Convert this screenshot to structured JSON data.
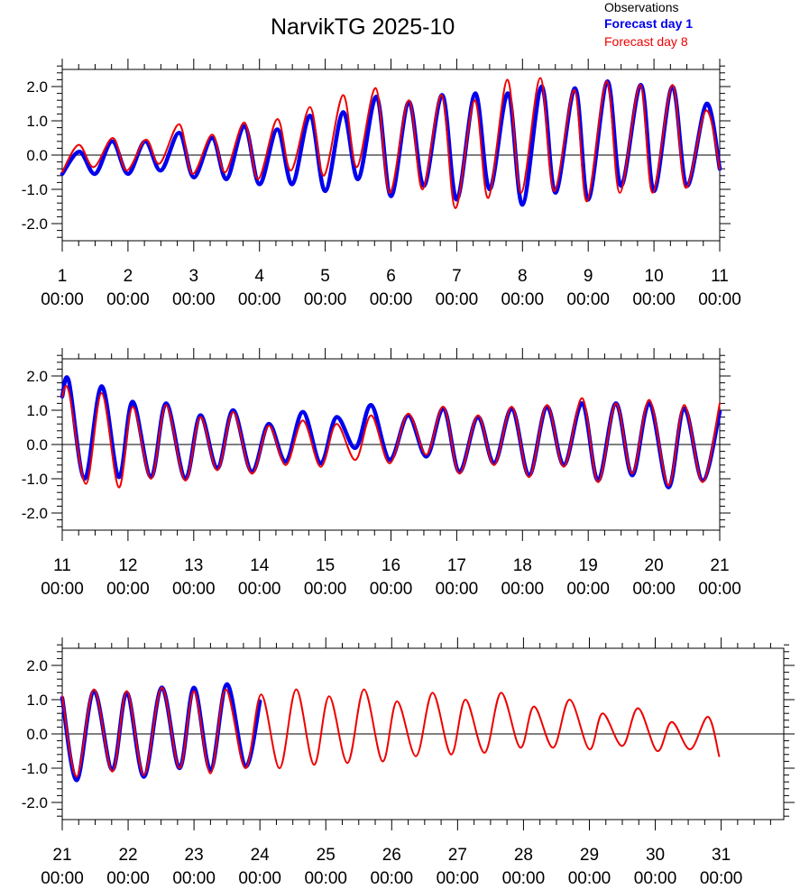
{
  "title": "NarvikTG 2025-10",
  "legend": {
    "observations": "Observations",
    "forecast_day1": "Forecast day 1",
    "forecast_day8": "Forecast day 8"
  },
  "colors": {
    "observations": "#000000",
    "forecast_day1": "#0000ee",
    "forecast_day8": "#ee0000"
  },
  "chart_data": [
    {
      "type": "line",
      "xlim": [
        1,
        11
      ],
      "ylim": [
        -2.5,
        2.5
      ],
      "yticks": [
        -2.0,
        -1.0,
        0.0,
        1.0,
        2.0
      ],
      "ytick_labels": [
        "-2.0",
        "-1.0",
        "0.0",
        "1.0",
        "2.0"
      ],
      "xticks": [
        1,
        2,
        3,
        4,
        5,
        6,
        7,
        8,
        9,
        10,
        11
      ],
      "xtick_labels": [
        [
          "1",
          "00:00"
        ],
        [
          "2",
          "00:00"
        ],
        [
          "3",
          "00:00"
        ],
        [
          "4",
          "00:00"
        ],
        [
          "5",
          "00:00"
        ],
        [
          "6",
          "00:00"
        ],
        [
          "7",
          "00:00"
        ],
        [
          "8",
          "00:00"
        ],
        [
          "9",
          "00:00"
        ],
        [
          "10",
          "00:00"
        ],
        [
          "11",
          "00:00"
        ]
      ],
      "zero_line": true,
      "series": [
        {
          "name": "Forecast day 1",
          "x": [
            1.0,
            1.26,
            1.5,
            1.76,
            2.0,
            2.26,
            2.5,
            2.78,
            3.0,
            3.28,
            3.5,
            3.77,
            4.0,
            4.27,
            4.5,
            4.77,
            5.0,
            5.27,
            5.5,
            5.78,
            6.0,
            6.27,
            6.5,
            6.78,
            7.0,
            7.28,
            7.5,
            7.78,
            8.0,
            8.29,
            8.5,
            8.8,
            9.0,
            9.29,
            9.5,
            9.8,
            10.0,
            10.28,
            10.5,
            10.8,
            11.0
          ],
          "values": [
            -0.55,
            0.1,
            -0.55,
            0.4,
            -0.55,
            0.4,
            -0.45,
            0.65,
            -0.65,
            0.5,
            -0.7,
            0.85,
            -0.85,
            0.75,
            -0.85,
            1.15,
            -1.05,
            1.25,
            -0.7,
            1.7,
            -1.2,
            1.55,
            -0.9,
            1.75,
            -1.3,
            1.8,
            -1.0,
            1.8,
            -1.45,
            2.0,
            -1.1,
            1.95,
            -1.3,
            2.15,
            -0.9,
            2.05,
            -1.05,
            2.0,
            -0.9,
            1.5,
            -0.4
          ]
        },
        {
          "name": "Forecast day 8",
          "x": [
            1.0,
            1.25,
            1.48,
            1.77,
            1.98,
            2.27,
            2.48,
            2.78,
            2.98,
            3.28,
            3.48,
            3.77,
            3.98,
            4.27,
            4.48,
            4.77,
            4.98,
            5.27,
            5.48,
            5.77,
            5.98,
            6.27,
            6.48,
            6.77,
            6.98,
            7.27,
            7.48,
            7.77,
            7.98,
            8.27,
            8.48,
            8.79,
            8.98,
            9.28,
            9.48,
            9.79,
            9.98,
            10.28,
            10.48,
            10.79,
            11.0
          ],
          "values": [
            -0.5,
            0.3,
            -0.35,
            0.5,
            -0.45,
            0.45,
            -0.25,
            0.9,
            -0.55,
            0.6,
            -0.5,
            0.95,
            -0.7,
            1.05,
            -0.45,
            1.4,
            -0.6,
            1.75,
            -0.35,
            1.95,
            -1.1,
            1.6,
            -1.0,
            1.75,
            -1.55,
            1.6,
            -1.25,
            2.2,
            -1.1,
            2.25,
            -1.05,
            1.9,
            -1.35,
            2.15,
            -1.1,
            2.05,
            -1.1,
            2.05,
            -0.95,
            1.3,
            -0.4
          ]
        }
      ]
    },
    {
      "type": "line",
      "xlim": [
        11,
        21
      ],
      "ylim": [
        -2.5,
        2.5
      ],
      "yticks": [
        -2.0,
        -1.0,
        0.0,
        1.0,
        2.0
      ],
      "ytick_labels": [
        "-2.0",
        "-1.0",
        "0.0",
        "1.0",
        "2.0"
      ],
      "xticks": [
        11,
        12,
        13,
        14,
        15,
        16,
        17,
        18,
        19,
        20,
        21
      ],
      "xtick_labels": [
        [
          "11",
          "00:00"
        ],
        [
          "12",
          "00:00"
        ],
        [
          "13",
          "00:00"
        ],
        [
          "14",
          "00:00"
        ],
        [
          "15",
          "00:00"
        ],
        [
          "16",
          "00:00"
        ],
        [
          "17",
          "00:00"
        ],
        [
          "18",
          "00:00"
        ],
        [
          "19",
          "00:00"
        ],
        [
          "20",
          "00:00"
        ],
        [
          "21",
          "00:00"
        ]
      ],
      "zero_line": true,
      "series": [
        {
          "name": "Forecast day 1",
          "x": [
            11.0,
            11.1,
            11.34,
            11.6,
            11.86,
            12.07,
            12.35,
            12.58,
            12.87,
            13.1,
            13.36,
            13.6,
            13.88,
            14.14,
            14.4,
            14.66,
            14.93,
            15.17,
            15.46,
            15.7,
            15.98,
            16.26,
            16.54,
            16.8,
            17.04,
            17.32,
            17.57,
            17.84,
            18.1,
            18.37,
            18.63,
            18.91,
            19.15,
            19.42,
            19.67,
            19.93,
            20.22,
            20.46,
            20.74,
            21.0
          ],
          "values": [
            1.4,
            1.85,
            -1.0,
            1.7,
            -0.95,
            1.25,
            -0.95,
            1.2,
            -1.0,
            0.85,
            -0.7,
            1.0,
            -0.8,
            0.6,
            -0.5,
            0.95,
            -0.55,
            0.8,
            -0.1,
            1.15,
            -0.45,
            0.85,
            -0.35,
            1.05,
            -0.8,
            0.8,
            -0.55,
            1.05,
            -0.9,
            1.1,
            -0.6,
            1.2,
            -1.05,
            1.2,
            -0.9,
            1.2,
            -1.25,
            1.05,
            -1.05,
            0.95
          ]
        },
        {
          "name": "Forecast day 8",
          "x": [
            11.0,
            11.1,
            11.36,
            11.6,
            11.86,
            12.07,
            12.35,
            12.58,
            12.87,
            13.1,
            13.36,
            13.6,
            13.88,
            14.14,
            14.4,
            14.66,
            14.93,
            15.17,
            15.46,
            15.7,
            15.98,
            16.26,
            16.54,
            16.8,
            17.04,
            17.32,
            17.57,
            17.84,
            18.1,
            18.37,
            18.63,
            18.91,
            19.15,
            19.42,
            19.67,
            19.93,
            20.22,
            20.46,
            20.74,
            21.0
          ],
          "values": [
            1.4,
            1.55,
            -1.15,
            1.5,
            -1.25,
            1.1,
            -1.0,
            1.15,
            -1.05,
            0.8,
            -0.75,
            0.95,
            -0.85,
            0.55,
            -0.6,
            0.7,
            -0.65,
            0.6,
            -0.45,
            0.85,
            -0.55,
            0.9,
            -0.3,
            1.1,
            -0.85,
            0.85,
            -0.6,
            1.1,
            -0.95,
            1.15,
            -0.65,
            1.35,
            -1.1,
            1.2,
            -0.85,
            1.3,
            -1.2,
            1.15,
            -1.1,
            1.2
          ]
        }
      ]
    },
    {
      "type": "line",
      "xlim": [
        21,
        31.95
      ],
      "ylim": [
        -2.5,
        2.5
      ],
      "yticks": [
        -2.0,
        -1.0,
        0.0,
        1.0,
        2.0
      ],
      "ytick_labels": [
        "-2.0",
        "-1.0",
        "0.0",
        "1.0",
        "2.0"
      ],
      "xticks": [
        21,
        22,
        23,
        24,
        25,
        26,
        27,
        28,
        29,
        30,
        31
      ],
      "xtick_labels": [
        [
          "21",
          "00:00"
        ],
        [
          "22",
          "00:00"
        ],
        [
          "23",
          "00:00"
        ],
        [
          "24",
          "00:00"
        ],
        [
          "25",
          "00:00"
        ],
        [
          "26",
          "00:00"
        ],
        [
          "27",
          "00:00"
        ],
        [
          "28",
          "00:00"
        ],
        [
          "29",
          "00:00"
        ],
        [
          "30",
          "00:00"
        ],
        [
          "31",
          "00:00"
        ]
      ],
      "zero_line": true,
      "series": [
        {
          "name": "Forecast day 1",
          "x": [
            21.0,
            21.22,
            21.48,
            21.76,
            21.98,
            22.24,
            22.51,
            22.78,
            23.0,
            23.25,
            23.5,
            23.78,
            24.0
          ],
          "values": [
            1.05,
            -1.35,
            1.25,
            -1.05,
            1.2,
            -1.25,
            1.35,
            -1.0,
            1.35,
            -1.05,
            1.45,
            -0.95,
            0.95
          ]
        },
        {
          "name": "Forecast day 8",
          "x": [
            21.0,
            21.22,
            21.48,
            21.76,
            21.98,
            22.24,
            22.51,
            22.78,
            23.0,
            23.25,
            23.48,
            23.78,
            24.02,
            24.3,
            24.55,
            24.82,
            25.05,
            25.33,
            25.58,
            25.86,
            26.08,
            26.37,
            26.62,
            26.9,
            27.12,
            27.41,
            27.66,
            27.95,
            28.16,
            28.45,
            28.7,
            29.0,
            29.2,
            29.5,
            29.74,
            30.03,
            30.25,
            30.53,
            30.8,
            30.97
          ],
          "values": [
            1.1,
            -1.25,
            1.3,
            -1.1,
            1.25,
            -1.2,
            1.35,
            -1.0,
            1.25,
            -1.15,
            1.3,
            -1.0,
            1.15,
            -1.0,
            1.3,
            -0.9,
            1.1,
            -0.85,
            1.3,
            -0.8,
            0.95,
            -0.65,
            1.2,
            -0.6,
            1.0,
            -0.55,
            1.2,
            -0.4,
            0.8,
            -0.4,
            1.0,
            -0.45,
            0.6,
            -0.35,
            0.75,
            -0.5,
            0.35,
            -0.45,
            0.5,
            -0.65
          ]
        }
      ]
    }
  ]
}
